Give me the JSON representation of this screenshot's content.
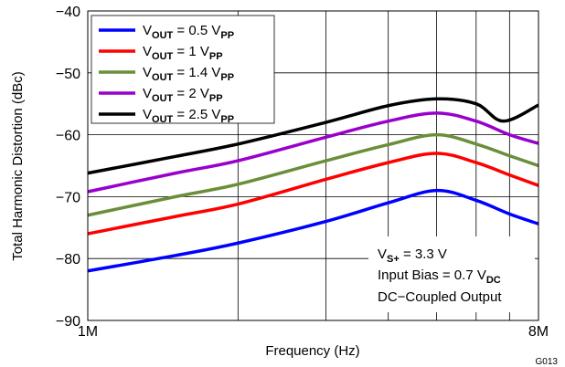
{
  "chart_data": {
    "type": "line",
    "title": "",
    "xlabel": "Frequency (Hz)",
    "ylabel": "Total Harmonic Distortion (dBc)",
    "figure_id": "G013",
    "xscale": "log",
    "xlim": [
      1000000,
      8000000
    ],
    "ylim": [
      -90,
      -40
    ],
    "grid": true,
    "legend_position": "top-left",
    "x_tick_labels": [
      {
        "value": 1000000,
        "label": "1M"
      },
      {
        "value": 8000000,
        "label": "8M"
      }
    ],
    "y_ticks": [
      {
        "value": -40,
        "label": "−40"
      },
      {
        "value": -50,
        "label": "−50"
      },
      {
        "value": -60,
        "label": "−60"
      },
      {
        "value": -70,
        "label": "−70"
      },
      {
        "value": -80,
        "label": "−80"
      },
      {
        "value": -90,
        "label": "−90"
      }
    ],
    "x_gridlines": [
      2000000,
      3000000,
      4000000,
      5000000,
      6000000,
      7000000
    ],
    "series": [
      {
        "name": "VOUT = 0.5 VPP",
        "label_main": "V",
        "label_sub": "OUT",
        "label_mid": " = 0.5 V",
        "label_sub2": "PP",
        "color": "#0000ff",
        "points": [
          [
            1000000,
            -82.0
          ],
          [
            1500000,
            -79.5
          ],
          [
            2000000,
            -77.5
          ],
          [
            3000000,
            -74.0
          ],
          [
            4000000,
            -71.0
          ],
          [
            5000000,
            -69.0
          ],
          [
            6000000,
            -70.6
          ],
          [
            7000000,
            -72.8
          ],
          [
            8000000,
            -74.4
          ]
        ]
      },
      {
        "name": "VOUT = 1 VPP",
        "label_main": "V",
        "label_sub": "OUT",
        "label_mid": " = 1 V",
        "label_sub2": "PP",
        "color": "#ff0000",
        "points": [
          [
            1000000,
            -76.0
          ],
          [
            1500000,
            -73.2
          ],
          [
            2000000,
            -71.2
          ],
          [
            3000000,
            -67.2
          ],
          [
            4000000,
            -64.5
          ],
          [
            5000000,
            -63.0
          ],
          [
            6000000,
            -64.5
          ],
          [
            7000000,
            -66.5
          ],
          [
            8000000,
            -68.2
          ]
        ]
      },
      {
        "name": "VOUT = 1.4 VPP",
        "label_main": "V",
        "label_sub": "OUT",
        "label_mid": " = 1.4 V",
        "label_sub2": "PP",
        "color": "#6b8e3a",
        "points": [
          [
            1000000,
            -73.0
          ],
          [
            1500000,
            -70.0
          ],
          [
            2000000,
            -68.0
          ],
          [
            3000000,
            -64.2
          ],
          [
            4000000,
            -61.6
          ],
          [
            5000000,
            -60.0
          ],
          [
            6000000,
            -61.5
          ],
          [
            7000000,
            -63.4
          ],
          [
            8000000,
            -65.0
          ]
        ]
      },
      {
        "name": "VOUT = 2 VPP",
        "label_main": "V",
        "label_sub": "OUT",
        "label_mid": " = 2 V",
        "label_sub2": "PP",
        "color": "#9900cc",
        "points": [
          [
            1000000,
            -69.2
          ],
          [
            1500000,
            -66.2
          ],
          [
            2000000,
            -64.2
          ],
          [
            3000000,
            -60.4
          ],
          [
            4000000,
            -57.8
          ],
          [
            5000000,
            -56.5
          ],
          [
            6000000,
            -57.8
          ],
          [
            7000000,
            -60.0
          ],
          [
            8000000,
            -61.4
          ]
        ]
      },
      {
        "name": "VOUT = 2.5 VPP",
        "label_main": "V",
        "label_sub": "OUT",
        "label_mid": " = 2.5 V",
        "label_sub2": "PP",
        "color": "#000000",
        "points": [
          [
            1000000,
            -66.2
          ],
          [
            1500000,
            -63.5
          ],
          [
            2000000,
            -61.5
          ],
          [
            3000000,
            -58.0
          ],
          [
            4000000,
            -55.3
          ],
          [
            5000000,
            -54.2
          ],
          [
            6000000,
            -55.0
          ],
          [
            6800000,
            -57.8
          ],
          [
            8000000,
            -55.2
          ]
        ]
      }
    ],
    "annotations": {
      "line1_main": "V",
      "line1_sub": "S+",
      "line1_rest": " = 3.3 V",
      "line2_main": "Input Bias = 0.7 V",
      "line2_sub": "DC",
      "line3": "DC−Coupled Output"
    }
  }
}
